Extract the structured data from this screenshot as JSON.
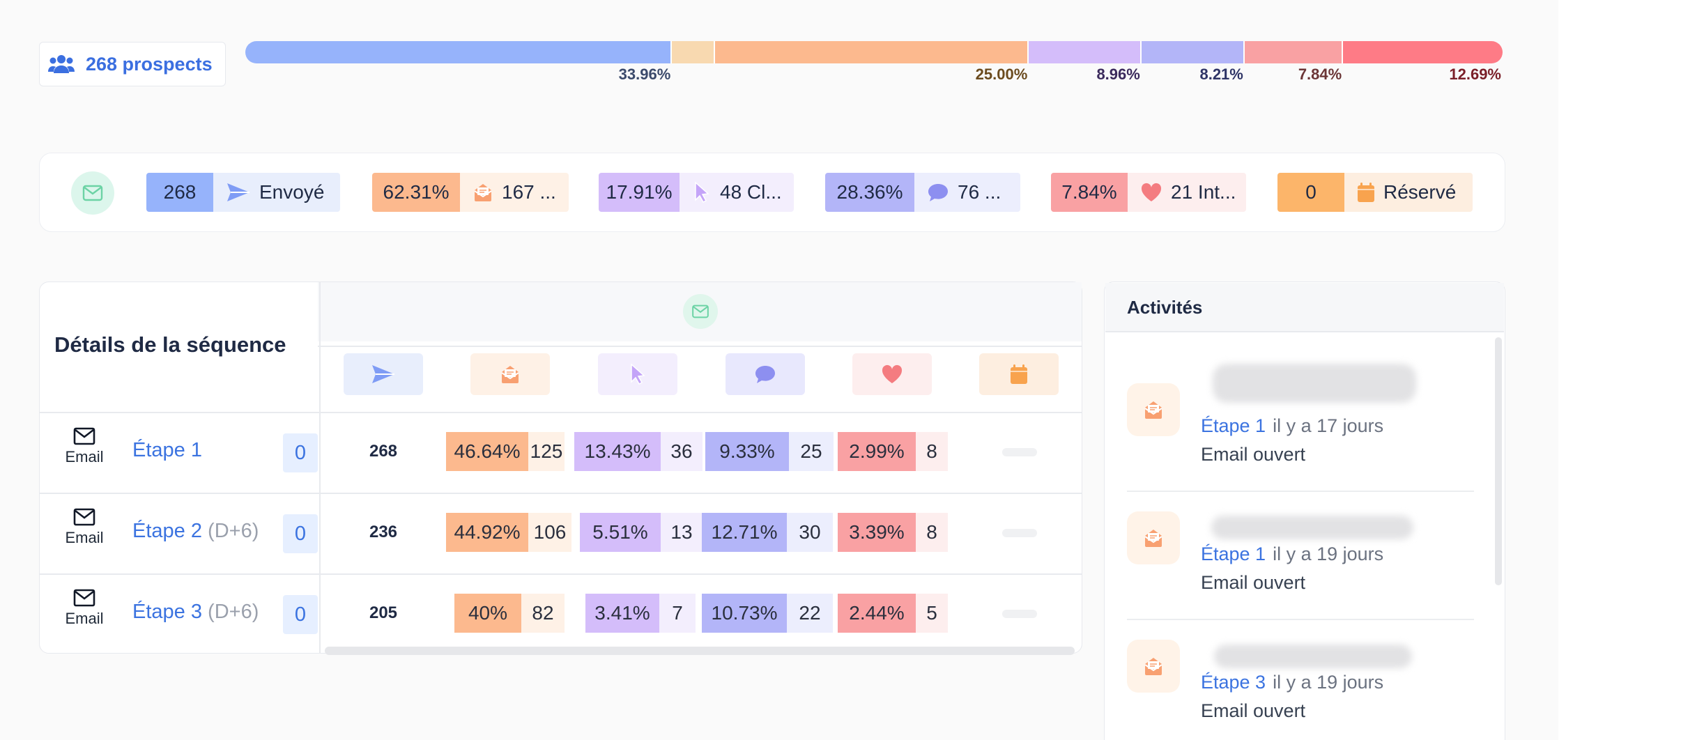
{
  "prospects": {
    "label": "268 prospects"
  },
  "funnel": [
    {
      "value": 33.96,
      "label": "33.96%",
      "color": "#96b3fb",
      "text_color": "#3b4a6b"
    },
    {
      "value": 3.4,
      "label": "",
      "color": "#f8d9b0",
      "text_color": "#6b4b1e"
    },
    {
      "value": 25.0,
      "label": "25.00%",
      "color": "#fcb98e",
      "text_color": "#6b4b1e"
    },
    {
      "value": 8.96,
      "label": "8.96%",
      "color": "#d4bdfa",
      "text_color": "#3b2a5c"
    },
    {
      "value": 8.21,
      "label": "8.21%",
      "color": "#b3b5f8",
      "text_color": "#2e3466"
    },
    {
      "value": 7.84,
      "label": "7.84%",
      "color": "#f9a1a3",
      "text_color": "#6b3536"
    },
    {
      "value": 12.69,
      "label": "12.69%",
      "color": "#fe7b86",
      "text_color": "#7a1f28"
    }
  ],
  "summary": [
    {
      "pct": "268",
      "label": "Envoyé",
      "icon": "send-icon",
      "pct_bg": "#96b3fb",
      "lbl_bg": "#e8eefc",
      "icon_color": "#7f9cf5"
    },
    {
      "pct": "62.31%",
      "label": "167 ...",
      "icon": "opened-mail-icon",
      "pct_bg": "#fcb98e",
      "lbl_bg": "#fef1e6",
      "icon_color": "#f8a071"
    },
    {
      "pct": "17.91%",
      "label": "48 Cl...",
      "icon": "cursor-icon",
      "pct_bg": "#d4bdfa",
      "lbl_bg": "#f3eefd",
      "icon_color": "#c4a4f8"
    },
    {
      "pct": "28.36%",
      "label": "76 ...",
      "icon": "chat-icon",
      "pct_bg": "#b3b5f8",
      "lbl_bg": "#eceefd",
      "icon_color": "#8d8ff0"
    },
    {
      "pct": "7.84%",
      "label": "21 Int...",
      "icon": "heart-icon",
      "pct_bg": "#f9a1a3",
      "lbl_bg": "#fdeeee",
      "icon_color": "#f47c80"
    },
    {
      "pct": "0",
      "label": "Réservé",
      "icon": "calendar-icon",
      "pct_bg": "#fcb56a",
      "lbl_bg": "#fdeee0",
      "icon_color": "#f8a34e"
    }
  ],
  "details": {
    "title": "Détails de la séquence",
    "header_icons": [
      {
        "icon": "send-icon",
        "bg": "#e8eefc",
        "color": "#7f9cf5"
      },
      {
        "icon": "opened-mail-icon",
        "bg": "#fef1e6",
        "color": "#f8a071"
      },
      {
        "icon": "cursor-icon",
        "bg": "#f3eefd",
        "color": "#c4a4f8"
      },
      {
        "icon": "chat-icon",
        "bg": "#e8e8fd",
        "color": "#8d8ff0"
      },
      {
        "icon": "heart-icon",
        "bg": "#fdeeee",
        "color": "#f47c80"
      },
      {
        "icon": "calendar-icon",
        "bg": "#fdeee0",
        "color": "#f8a34e"
      }
    ],
    "rows": [
      {
        "channel": "Email",
        "step": "Étape 1",
        "delay": "",
        "count": "0",
        "sent": "268",
        "opened": {
          "pct": "46.64%",
          "n": "125"
        },
        "clicked": {
          "pct": "13.43%",
          "n": "36"
        },
        "replied": {
          "pct": "9.33%",
          "n": "25"
        },
        "interested": {
          "pct": "2.99%",
          "n": "8"
        }
      },
      {
        "channel": "Email",
        "step": "Étape 2",
        "delay": "(D+6)",
        "count": "0",
        "sent": "236",
        "opened": {
          "pct": "44.92%",
          "n": "106"
        },
        "clicked": {
          "pct": "5.51%",
          "n": "13"
        },
        "replied": {
          "pct": "12.71%",
          "n": "30"
        },
        "interested": {
          "pct": "3.39%",
          "n": "8"
        }
      },
      {
        "channel": "Email",
        "step": "Étape 3",
        "delay": "(D+6)",
        "count": "0",
        "sent": "205",
        "opened": {
          "pct": "40%",
          "n": "82"
        },
        "clicked": {
          "pct": "3.41%",
          "n": "7"
        },
        "replied": {
          "pct": "10.73%",
          "n": "22"
        },
        "interested": {
          "pct": "2.44%",
          "n": "5"
        }
      }
    ]
  },
  "activities": {
    "title": "Activités",
    "items": [
      {
        "step": "Étape 1",
        "ago": "il y a 17 jours",
        "type": "Email ouvert"
      },
      {
        "step": "Étape 1",
        "ago": "il y a 19 jours",
        "type": "Email ouvert"
      },
      {
        "step": "Étape 3",
        "ago": "il y a 19 jours",
        "type": "Email ouvert"
      }
    ]
  }
}
